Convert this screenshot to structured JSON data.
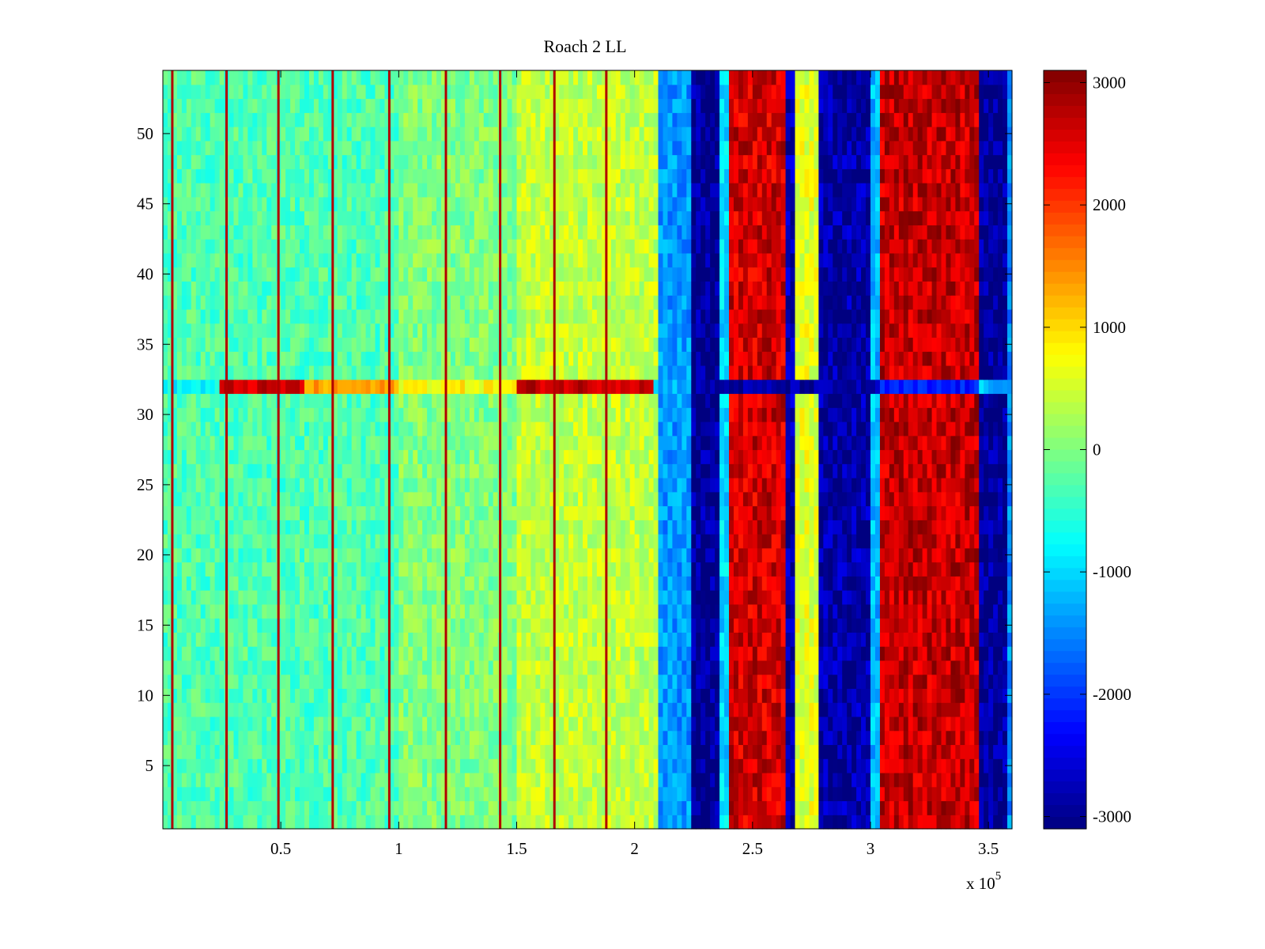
{
  "chart_data": {
    "type": "heatmap",
    "title": "Roach 2 LL",
    "xlabel": "",
    "ylabel": "",
    "x_multiplier_label": "x 10",
    "x_multiplier_exponent": "5",
    "xlim": [
      0,
      360000
    ],
    "ylim": [
      0.5,
      54.5
    ],
    "x_ticks": [
      {
        "value": 50000,
        "label": "0.5"
      },
      {
        "value": 100000,
        "label": "1"
      },
      {
        "value": 150000,
        "label": "1.5"
      },
      {
        "value": 200000,
        "label": "2"
      },
      {
        "value": 250000,
        "label": "2.5"
      },
      {
        "value": 300000,
        "label": "3"
      },
      {
        "value": 350000,
        "label": "3.5"
      }
    ],
    "y_ticks": [
      {
        "value": 5,
        "label": "5"
      },
      {
        "value": 10,
        "label": "10"
      },
      {
        "value": 15,
        "label": "15"
      },
      {
        "value": 20,
        "label": "20"
      },
      {
        "value": 25,
        "label": "25"
      },
      {
        "value": 30,
        "label": "30"
      },
      {
        "value": 35,
        "label": "35"
      },
      {
        "value": 40,
        "label": "40"
      },
      {
        "value": 45,
        "label": "45"
      },
      {
        "value": 50,
        "label": "50"
      }
    ],
    "colorbar": {
      "colormap": "jet",
      "clim": [
        -3100,
        3100
      ],
      "ticks": [
        {
          "value": 3000,
          "label": "3000"
        },
        {
          "value": 2000,
          "label": "2000"
        },
        {
          "value": 1000,
          "label": "1000"
        },
        {
          "value": 0,
          "label": "0"
        },
        {
          "value": -1000,
          "label": "-1000"
        },
        {
          "value": -2000,
          "label": "-2000"
        },
        {
          "value": -3000,
          "label": "-3000"
        }
      ]
    },
    "column_bands": [
      {
        "x0": 0,
        "x1": 100000,
        "value": -300
      },
      {
        "x0": 100000,
        "x1": 150000,
        "value": 0
      },
      {
        "x0": 150000,
        "x1": 210000,
        "value": 400
      },
      {
        "x0": 210000,
        "x1": 224000,
        "value": -1400
      },
      {
        "x0": 224000,
        "x1": 236000,
        "value": -3000
      },
      {
        "x0": 236000,
        "x1": 240000,
        "value": -1000
      },
      {
        "x0": 240000,
        "x1": 265000,
        "value": 2600
      },
      {
        "x0": 265000,
        "x1": 268000,
        "value": -2800
      },
      {
        "x0": 268000,
        "x1": 278000,
        "value": 600
      },
      {
        "x0": 278000,
        "x1": 300000,
        "value": -2900
      },
      {
        "x0": 300000,
        "x1": 305000,
        "value": -1200
      },
      {
        "x0": 305000,
        "x1": 346000,
        "value": 2700
      },
      {
        "x0": 346000,
        "x1": 358000,
        "value": -3000
      },
      {
        "x0": 358000,
        "x1": 360000,
        "value": -1500
      }
    ],
    "row_32_values": [
      {
        "x0": 0,
        "x1": 25000,
        "value": -800
      },
      {
        "x0": 25000,
        "x1": 60000,
        "value": 2600
      },
      {
        "x0": 60000,
        "x1": 100000,
        "value": 1300
      },
      {
        "x0": 100000,
        "x1": 150000,
        "value": 800
      },
      {
        "x0": 150000,
        "x1": 208000,
        "value": 2700
      },
      {
        "x0": 208000,
        "x1": 224000,
        "value": -1200
      },
      {
        "x0": 224000,
        "x1": 305000,
        "value": -2900
      },
      {
        "x0": 305000,
        "x1": 346000,
        "value": -2200
      },
      {
        "x0": 346000,
        "x1": 360000,
        "value": -1200
      }
    ],
    "periodic_spike_x": [
      4000,
      27000,
      49000,
      72000,
      96000,
      120000,
      143000,
      166000,
      188000
    ],
    "periodic_spike_value": 2800
  }
}
